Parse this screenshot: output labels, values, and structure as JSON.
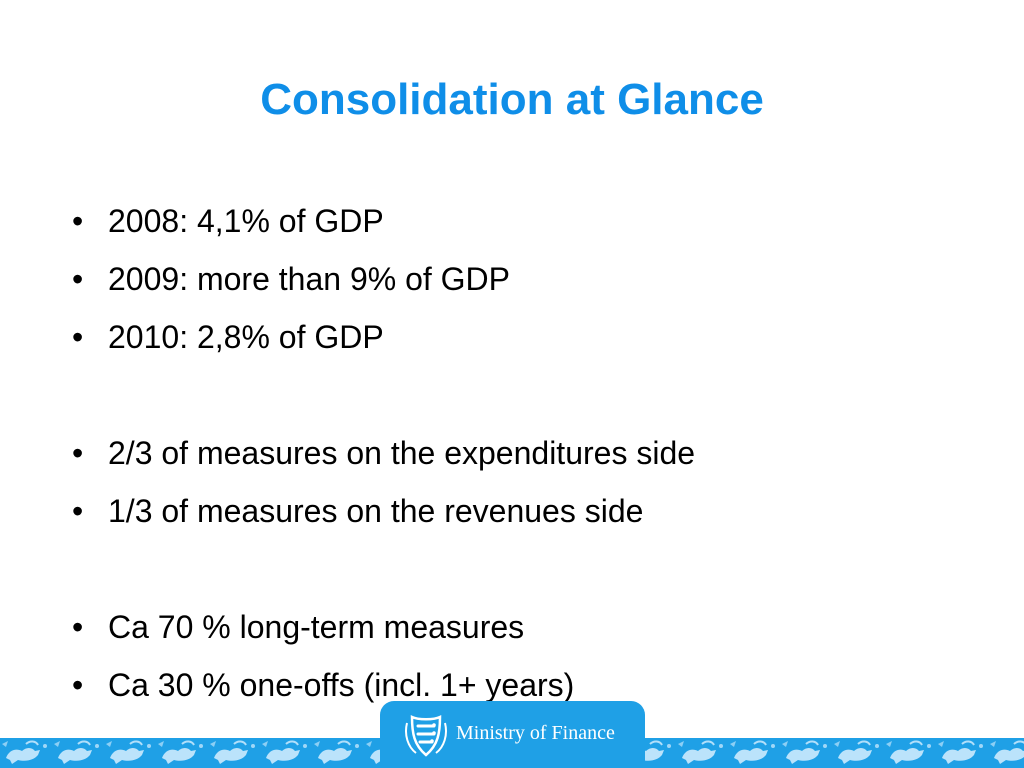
{
  "slide": {
    "title": "Consolidation at Glance",
    "bullet_glyph": "•",
    "bullets": [
      "2008: 4,1% of GDP",
      "2009: more than 9% of GDP",
      "2010: 2,8% of GDP",
      "",
      "2/3 of measures on the expenditures side",
      "1/3 of measures on the revenues side",
      "",
      "Ca 70 % long-term measures",
      "Ca 30 % one-offs (incl. 1+ years)"
    ]
  },
  "footer": {
    "ministry_name": "Ministry of Finance",
    "crest_icon": "three-lions-crest-icon",
    "pattern_icon": "lion-pattern-icon"
  },
  "colors": {
    "title": "#0f8ee8",
    "footer_band": "#1fa0e6",
    "text": "#000000"
  }
}
